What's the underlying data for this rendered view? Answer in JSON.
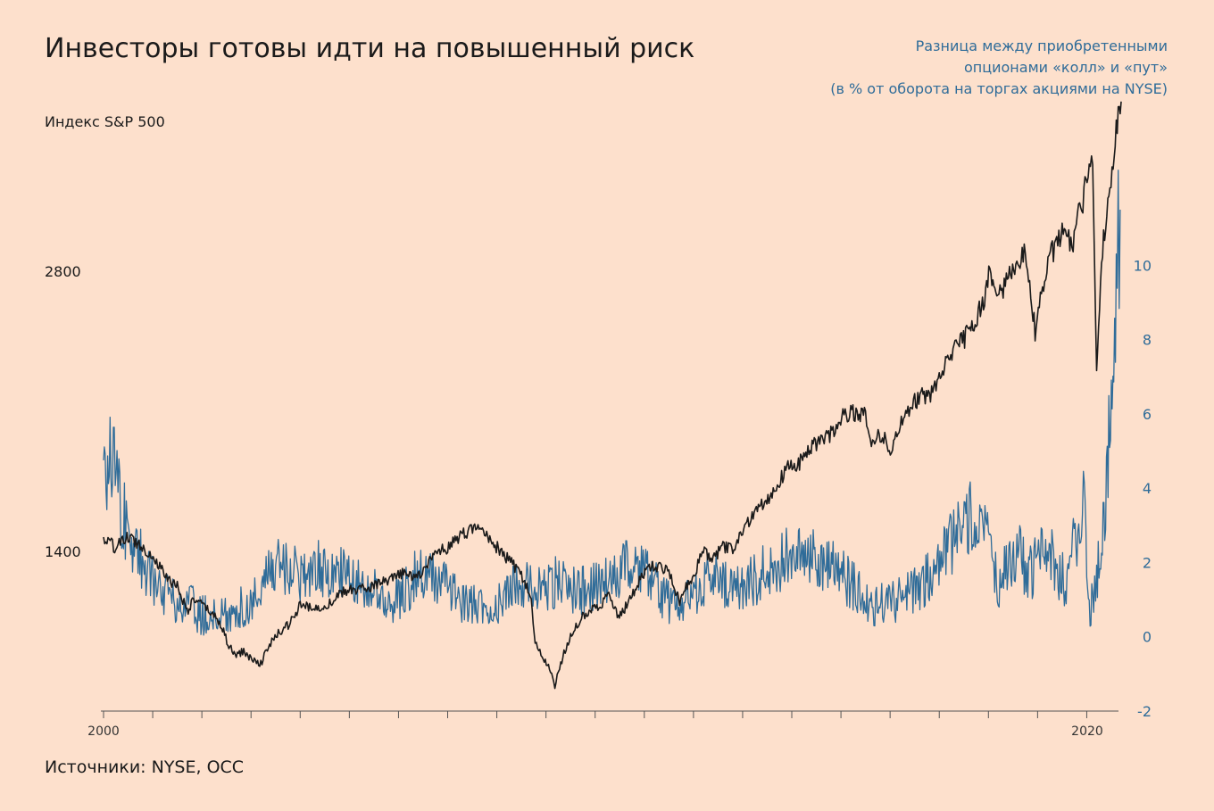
{
  "title": "Инвесторы готовы идти на повышенный риск",
  "source": "Источники: NYSE, OCC",
  "colors": {
    "background": "#fde0cc",
    "sp500": "#1a1a1a",
    "options": "#2f6c99",
    "text": "#1a1a1a"
  },
  "chart_data": {
    "type": "line",
    "x_range": [
      2000,
      2020.7
    ],
    "x_tick_labels": [
      "2000",
      "2020"
    ],
    "x_tick_marks_years": [
      2000,
      2001,
      2002,
      2003,
      2004,
      2005,
      2006,
      2007,
      2008,
      2009,
      2010,
      2011,
      2012,
      2013,
      2014,
      2015,
      2016,
      2017,
      2018,
      2019,
      2020
    ],
    "left_axis": {
      "label": "Индекс S&P 500",
      "range": [
        600,
        3600
      ],
      "ticks": [
        1400,
        2800
      ]
    },
    "right_axis": {
      "label_lines": [
        "Разница между приобретенными",
        "опционами «колл» и «пут»",
        "(в % от оборота на торгах акциями на NYSE)"
      ],
      "range": [
        -2,
        12.1
      ],
      "ticks": [
        -2,
        0,
        2,
        4,
        6,
        8,
        10
      ]
    },
    "series": [
      {
        "axis": "left",
        "x": [
          2000.0,
          2000.25,
          2000.5,
          2000.7,
          2000.9,
          2001.1,
          2001.3,
          2001.5,
          2001.7,
          2001.85,
          2002.0,
          2002.2,
          2002.4,
          2002.55,
          2002.7,
          2002.85,
          2003.0,
          2003.2,
          2003.4,
          2003.6,
          2003.8,
          2004.0,
          2004.3,
          2004.6,
          2004.9,
          2005.2,
          2005.5,
          2005.8,
          2006.1,
          2006.4,
          2006.7,
          2007.0,
          2007.3,
          2007.55,
          2007.75,
          2007.9,
          2008.1,
          2008.3,
          2008.5,
          2008.7,
          2008.78,
          2008.9,
          2009.05,
          2009.18,
          2009.3,
          2009.5,
          2009.7,
          2009.9,
          2010.1,
          2010.3,
          2010.45,
          2010.6,
          2010.75,
          2010.9,
          2011.1,
          2011.3,
          2011.5,
          2011.62,
          2011.72,
          2011.85,
          2012.0,
          2012.2,
          2012.4,
          2012.6,
          2012.8,
          2013.0,
          2013.3,
          2013.6,
          2013.9,
          2014.2,
          2014.5,
          2014.75,
          2014.95,
          2015.2,
          2015.5,
          2015.62,
          2015.8,
          2016.05,
          2016.25,
          2016.5,
          2016.8,
          2017.0,
          2017.3,
          2017.6,
          2017.9,
          2018.05,
          2018.15,
          2018.3,
          2018.6,
          2018.75,
          2018.95,
          2019.1,
          2019.3,
          2019.5,
          2019.7,
          2019.9,
          2020.05,
          2020.12,
          2020.2,
          2020.3,
          2020.45,
          2020.6,
          2020.7
        ],
        "y": [
          1460,
          1420,
          1470,
          1440,
          1400,
          1340,
          1260,
          1230,
          1100,
          1160,
          1130,
          1090,
          1030,
          920,
          880,
          900,
          860,
          840,
          940,
          1000,
          1040,
          1130,
          1110,
          1140,
          1200,
          1210,
          1230,
          1250,
          1290,
          1270,
          1380,
          1420,
          1480,
          1520,
          1490,
          1450,
          1390,
          1340,
          1280,
          1160,
          940,
          880,
          830,
          720,
          840,
          980,
          1060,
          1110,
          1130,
          1190,
          1080,
          1110,
          1180,
          1250,
          1330,
          1320,
          1310,
          1200,
          1150,
          1230,
          1280,
          1400,
          1360,
          1420,
          1410,
          1500,
          1620,
          1690,
          1810,
          1850,
          1940,
          1970,
          2050,
          2100,
          2090,
          1940,
          1980,
          1910,
          2060,
          2160,
          2180,
          2270,
          2400,
          2490,
          2640,
          2820,
          2660,
          2700,
          2850,
          2900,
          2500,
          2700,
          2900,
          2980,
          2930,
          3140,
          3300,
          3380,
          2300,
          2850,
          3200,
          3480,
          3650
        ]
      },
      {
        "axis": "right",
        "x": [
          2000.0,
          2000.1,
          2000.2,
          2000.35,
          2000.5,
          2000.7,
          2000.9,
          2001.1,
          2001.3,
          2001.5,
          2001.8,
          2002.0,
          2002.3,
          2002.6,
          2002.9,
          2003.2,
          2003.5,
          2003.8,
          2004.0,
          2004.3,
          2004.6,
          2004.9,
          2005.2,
          2005.5,
          2005.8,
          2006.1,
          2006.4,
          2006.7,
          2007.0,
          2007.2,
          2007.5,
          2007.8,
          2008.1,
          2008.4,
          2008.7,
          2009.0,
          2009.3,
          2009.6,
          2009.9,
          2010.2,
          2010.5,
          2010.8,
          2011.1,
          2011.4,
          2011.7,
          2012.0,
          2012.3,
          2012.6,
          2012.9,
          2013.2,
          2013.5,
          2013.8,
          2014.1,
          2014.4,
          2014.7,
          2015.0,
          2015.3,
          2015.6,
          2015.9,
          2016.2,
          2016.5,
          2016.8,
          2017.1,
          2017.4,
          2017.7,
          2018.0,
          2018.2,
          2018.4,
          2018.6,
          2018.8,
          2019.0,
          2019.2,
          2019.4,
          2019.6,
          2019.8,
          2019.95,
          2020.05,
          2020.12,
          2020.2,
          2020.3,
          2020.4,
          2020.5,
          2020.6,
          2020.68
        ],
        "y": [
          5.0,
          4.5,
          5.2,
          3.5,
          2.8,
          2.3,
          1.8,
          1.2,
          1.1,
          0.9,
          0.8,
          0.6,
          0.5,
          0.7,
          0.8,
          1.3,
          2.0,
          1.8,
          1.7,
          1.9,
          1.6,
          1.8,
          1.4,
          1.2,
          0.9,
          1.2,
          1.7,
          1.6,
          1.3,
          1.0,
          0.9,
          0.8,
          1.0,
          1.5,
          1.3,
          1.4,
          1.5,
          1.2,
          1.3,
          1.5,
          1.7,
          2.0,
          1.6,
          1.0,
          0.8,
          1.1,
          1.6,
          1.4,
          1.3,
          1.5,
          1.8,
          2.0,
          2.4,
          2.2,
          1.9,
          1.7,
          1.3,
          0.8,
          0.9,
          1.0,
          1.2,
          1.6,
          2.2,
          2.8,
          3.3,
          2.5,
          1.4,
          1.9,
          2.3,
          1.6,
          2.0,
          2.4,
          1.7,
          1.5,
          2.8,
          4.0,
          0.5,
          1.0,
          1.5,
          3.0,
          4.0,
          6.5,
          9.5,
          11.5
        ]
      }
    ]
  }
}
